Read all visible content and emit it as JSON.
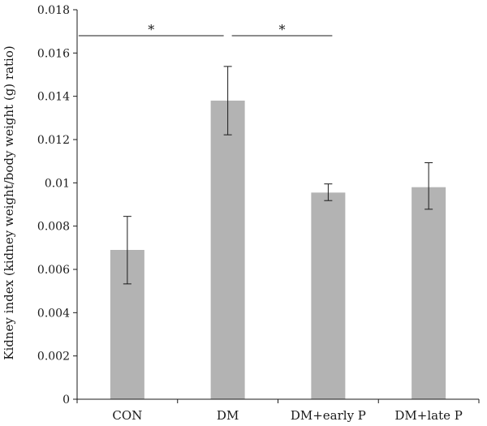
{
  "chart_data": {
    "type": "bar",
    "title": "",
    "xlabel": "",
    "ylabel": "Kidney index (kidney weight/body weight (g) ratio)",
    "categories": [
      "CON",
      "DM",
      "DM+early P",
      "DM+late P"
    ],
    "values": [
      0.0069,
      0.0138,
      0.00955,
      0.0098
    ],
    "errors": [
      [
        0.00533,
        0.00845
      ],
      [
        0.01222,
        0.01538
      ],
      [
        0.00918,
        0.00995
      ],
      [
        0.00878,
        0.01093
      ]
    ],
    "bar_color": "#b3b3b3",
    "ylim": [
      0,
      0.018
    ],
    "yticks": [
      {
        "value": 0,
        "label": "0"
      },
      {
        "value": 0.002,
        "label": "0.002"
      },
      {
        "value": 0.004,
        "label": "0.004"
      },
      {
        "value": 0.006,
        "label": "0.006"
      },
      {
        "value": 0.008,
        "label": "0.008"
      },
      {
        "value": 0.01,
        "label": "0.01"
      },
      {
        "value": 0.012,
        "label": "0.012"
      },
      {
        "value": 0.014,
        "label": "0.014"
      },
      {
        "value": 0.016,
        "label": "0.016"
      },
      {
        "value": 0.018,
        "label": "0.018"
      }
    ],
    "significance": [
      {
        "from": "CON",
        "to": "DM",
        "label": "*"
      },
      {
        "from": "DM",
        "to": "DM+early P",
        "label": "*"
      }
    ],
    "grid": false
  }
}
